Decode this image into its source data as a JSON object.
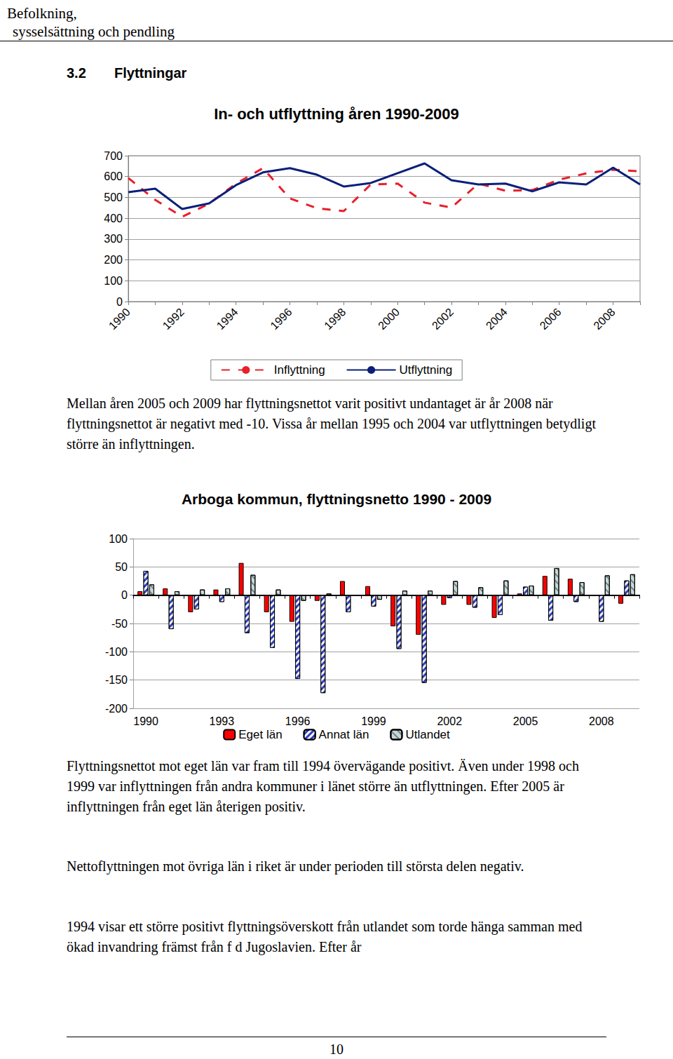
{
  "header": {
    "lines": [
      "Befolkning,",
      "sysselsättning och pendling"
    ]
  },
  "section": {
    "number": "3.2",
    "title": "Flyttningar"
  },
  "chart_data": [
    {
      "type": "line",
      "title": "In- och utflyttning åren 1990-2009",
      "categories": [
        "1990",
        null,
        "1992",
        null,
        "1994",
        null,
        "1996",
        null,
        "1998",
        null,
        "2000",
        null,
        "2002",
        null,
        "2004",
        null,
        "2006",
        null,
        "2008",
        null
      ],
      "series": [
        {
          "name": "Inflyttning",
          "color": "#e8202a",
          "line_style": "dashed",
          "marker": "none",
          "values": [
            593,
            488,
            407,
            470,
            566,
            640,
            495,
            448,
            434,
            562,
            566,
            475,
            451,
            566,
            532,
            535,
            585,
            615,
            633,
            625
          ]
        },
        {
          "name": "Utflyttning",
          "color": "#0a1f7a",
          "line_style": "solid",
          "marker": "none",
          "values": [
            525,
            542,
            444,
            471,
            559,
            620,
            640,
            609,
            552,
            569,
            616,
            663,
            582,
            562,
            566,
            529,
            572,
            562,
            643,
            562
          ]
        }
      ],
      "ylim": [
        0,
        700
      ],
      "yticks": [
        0,
        100,
        200,
        300,
        400,
        500,
        600,
        700
      ],
      "grid": true,
      "legend": "bottom"
    },
    {
      "type": "bar",
      "title": "Arboga kommun, flyttningsnetto 1990 - 2009",
      "categories": [
        "1990",
        null,
        null,
        "1993",
        null,
        null,
        "1996",
        null,
        null,
        "1999",
        null,
        null,
        "2002",
        null,
        null,
        "2005",
        null,
        null,
        "2008",
        null
      ],
      "series": [
        {
          "name": "Eget län",
          "color": "#ff0000",
          "values": [
            7,
            12,
            -30,
            10,
            57,
            -30,
            -47,
            -10,
            25,
            16,
            -55,
            -70,
            -17,
            -17,
            -40,
            3,
            34,
            29,
            0,
            -15
          ]
        },
        {
          "name": "Annat län",
          "color": "#2f3fbf",
          "values": [
            43,
            -60,
            -25,
            -12,
            -67,
            -93,
            -148,
            -173,
            -30,
            -20,
            -95,
            -155,
            -5,
            -22,
            -35,
            15,
            -45,
            -12,
            -47,
            26
          ]
        },
        {
          "name": "Utlandet",
          "color": "#c4dada",
          "values": [
            19,
            7,
            10,
            12,
            36,
            10,
            -10,
            3,
            0,
            -8,
            8,
            8,
            25,
            14,
            26,
            17,
            48,
            23,
            35,
            37
          ]
        }
      ],
      "ylim": [
        -200,
        100
      ],
      "yticks": [
        -200,
        -150,
        -100,
        -50,
        0,
        50,
        100
      ],
      "grid": true,
      "legend": "bottom"
    }
  ],
  "paragraphs": [
    "Mellan åren 2005 och 2009 har flyttningsnettot varit positivt undantaget är år 2008 när flyttningsnettot är negativt med -10. Vissa år mellan 1995 och 2004 var utflyttningen betydligt större än inflyttningen.",
    "Flyttningsnettot mot eget län var fram till 1994 övervägande positivt. Även under 1998 och 1999 var inflyttningen från andra kommuner i länet större än utflyttningen. Efter 2005 är inflyttningen från eget län återigen positiv.",
    "Nettoflyttningen mot övriga län i riket är under perioden till största delen negativ.",
    "1994 visar ett större positivt flyttningsöverskott från utlandet som torde hänga samman med ökad invandring främst från f d Jugoslavien. Efter år"
  ],
  "page_number": "10"
}
